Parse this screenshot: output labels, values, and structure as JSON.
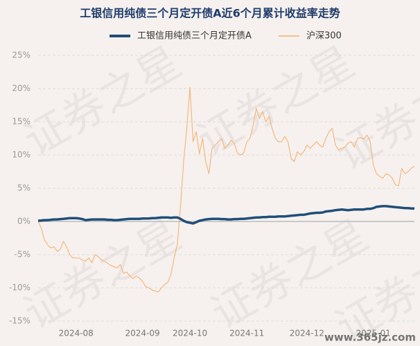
{
  "chart_data": {
    "type": "line",
    "title": "工银信用纯债三个月定开债A近6个月累计收益率走势",
    "watermark": "证券之星",
    "source": "www.365jz.com",
    "categories": [
      null,
      null,
      null,
      null,
      null,
      null,
      null,
      null,
      null,
      null,
      null,
      null,
      "2024-08",
      null,
      null,
      null,
      null,
      null,
      null,
      null,
      null,
      null,
      null,
      null,
      null,
      null,
      null,
      null,
      null,
      null,
      null,
      null,
      null,
      "2024-09",
      null,
      null,
      null,
      null,
      null,
      null,
      null,
      null,
      null,
      null,
      null,
      null,
      null,
      null,
      "2024-10",
      null,
      null,
      null,
      null,
      null,
      null,
      null,
      null,
      null,
      null,
      null,
      null,
      null,
      null,
      null,
      null,
      null,
      "2024-11",
      null,
      null,
      null,
      null,
      null,
      null,
      null,
      null,
      null,
      null,
      null,
      null,
      null,
      null,
      null,
      null,
      null,
      null,
      "2024-12",
      null,
      null,
      null,
      null,
      null,
      null,
      null,
      null,
      null,
      null,
      null,
      null,
      null,
      null,
      null,
      null,
      null,
      null,
      null,
      null,
      "2025-01",
      null,
      null,
      null,
      null,
      null,
      null,
      null,
      null,
      null,
      null,
      null,
      null,
      null
    ],
    "series": [
      {
        "name": "工银信用纯债三个月定开债A",
        "color": "#1f4e79",
        "width": 3.5,
        "values": [
          0.1,
          0.15,
          0.2,
          0.2,
          0.25,
          0.3,
          0.3,
          0.35,
          0.4,
          0.45,
          0.5,
          0.5,
          0.5,
          0.45,
          0.35,
          0.2,
          0.25,
          0.3,
          0.3,
          0.3,
          0.3,
          0.3,
          0.25,
          0.25,
          0.2,
          0.2,
          0.25,
          0.3,
          0.35,
          0.4,
          0.4,
          0.4,
          0.4,
          0.45,
          0.45,
          0.45,
          0.5,
          0.5,
          0.55,
          0.6,
          0.6,
          0.6,
          0.55,
          0.6,
          0.6,
          0.4,
          0.1,
          -0.1,
          -0.2,
          -0.3,
          -0.1,
          0.1,
          0.2,
          0.3,
          0.35,
          0.4,
          0.4,
          0.4,
          0.35,
          0.35,
          0.3,
          0.3,
          0.35,
          0.35,
          0.4,
          0.4,
          0.45,
          0.5,
          0.55,
          0.6,
          0.6,
          0.65,
          0.65,
          0.7,
          0.7,
          0.7,
          0.75,
          0.75,
          0.75,
          0.8,
          0.85,
          0.9,
          0.95,
          1.0,
          1.0,
          1.1,
          1.2,
          1.25,
          1.3,
          1.3,
          1.35,
          1.5,
          1.55,
          1.6,
          1.7,
          1.75,
          1.8,
          1.75,
          1.7,
          1.75,
          1.8,
          1.8,
          1.8,
          1.8,
          1.9,
          1.9,
          2.0,
          2.2,
          2.25,
          2.3,
          2.3,
          2.25,
          2.2,
          2.15,
          2.1,
          2.05,
          2.0,
          2.0,
          1.95,
          1.95
        ]
      },
      {
        "name": "沪深300",
        "color": "#f4b77d",
        "width": 1.2,
        "values": [
          0,
          -1,
          -2.8,
          -3.5,
          -4,
          -3.8,
          -4.5,
          -4.2,
          -3,
          -3.8,
          -5,
          -5.5,
          -5.5,
          -5.5,
          -5.8,
          -6,
          -5.5,
          -6.2,
          -5,
          -5.3,
          -5.8,
          -6,
          -6.3,
          -6.6,
          -6.8,
          -7,
          -6.5,
          -7.8,
          -7.6,
          -8.2,
          -8.6,
          -8.2,
          -8.5,
          -9,
          -9.8,
          -10,
          -10.3,
          -10.5,
          -10.6,
          -10,
          -9.5,
          -9.2,
          -8,
          -5.5,
          -3.5,
          2,
          9,
          14,
          20.2,
          12,
          13.5,
          10.2,
          12.5,
          9,
          7.2,
          11,
          11.5,
          12,
          12.5,
          11,
          11.5,
          12.2,
          11.8,
          10.3,
          10,
          10.3,
          12,
          12.5,
          14.5,
          17,
          15.5,
          16.5,
          15,
          15.8,
          14,
          12.5,
          12,
          12,
          12.8,
          12,
          9.5,
          9,
          10.5,
          10,
          10.5,
          11.5,
          11,
          11.5,
          12,
          11.5,
          11.2,
          12.5,
          13.5,
          14,
          11.5,
          10.8,
          11,
          11.2,
          11.8,
          12,
          11.2,
          12.5,
          12.6,
          12.4,
          13,
          12,
          8.5,
          7.2,
          6.8,
          6.5,
          7.2,
          7,
          6.5,
          5.5,
          5.4,
          8,
          7.2,
          7.5,
          8,
          8.3
        ]
      }
    ],
    "ylim": [
      -15,
      25
    ],
    "yticks": [
      {
        "value": -15,
        "label": "-15%"
      },
      {
        "value": -10,
        "label": "-10%"
      },
      {
        "value": -5,
        "label": "-5%"
      },
      {
        "value": 0,
        "label": "0%"
      },
      {
        "value": 5,
        "label": "5%"
      },
      {
        "value": 10,
        "label": "10%"
      },
      {
        "value": 15,
        "label": "15%"
      },
      {
        "value": 20,
        "label": "20%"
      },
      {
        "value": 25,
        "label": "25%"
      }
    ],
    "grid": true,
    "legend": "top"
  }
}
